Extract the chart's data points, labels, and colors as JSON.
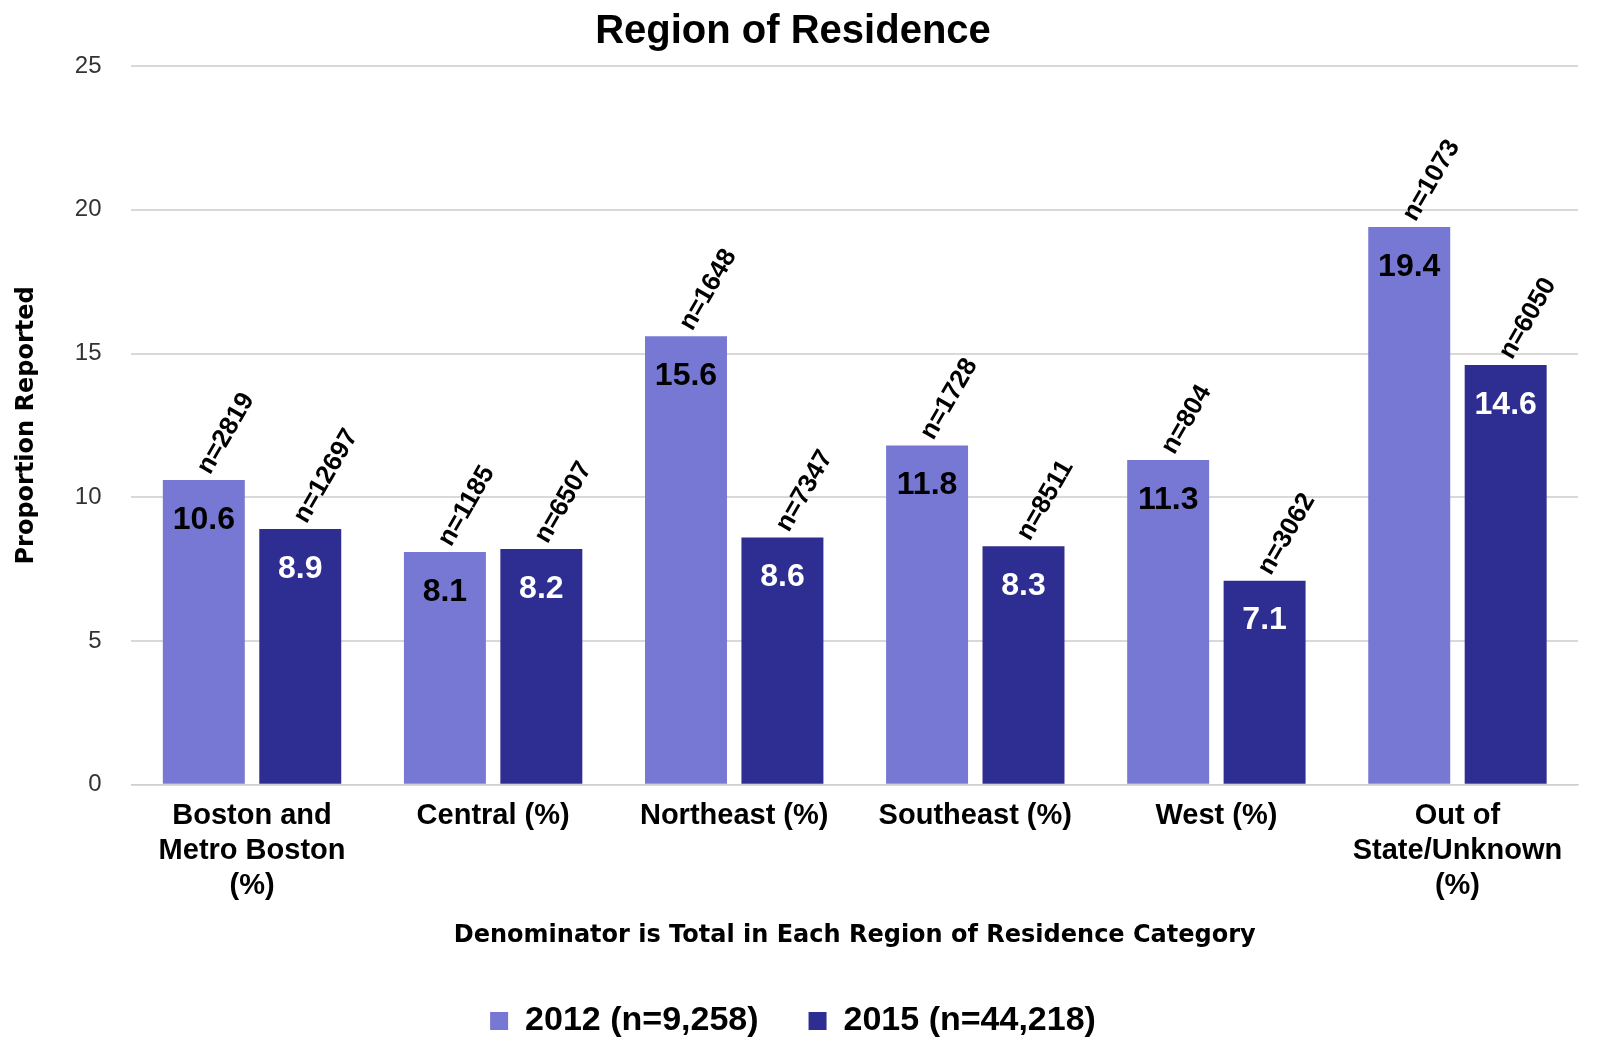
{
  "chart_data": {
    "type": "bar",
    "title": "Region of Residence",
    "xlabel": "Denominator is Total in Each Region of Residence Category",
    "ylabel": "Proportion Reported",
    "categories": [
      "Boston and Metro Boston (%)",
      "Central (%)",
      "Northeast (%)",
      "Southeast (%)",
      "West (%)",
      "Out of State/Unknown (%)"
    ],
    "series": [
      {
        "name": "2012 (n=9,258)",
        "color": "#7777d4",
        "values": [
          10.6,
          8.1,
          15.6,
          11.8,
          11.3,
          19.4
        ]
      },
      {
        "name": "2015 (n=44,218)",
        "color": "#2e2e92",
        "values": [
          8.9,
          8.2,
          8.6,
          8.3,
          7.1,
          14.6
        ]
      }
    ],
    "annotations": [
      "n=2819",
      "n=12697",
      "n=1185",
      "n=6507",
      "n=1648",
      "n=7347",
      "n=1728",
      "n=8511",
      "n=804",
      "n=3062",
      "n=1073",
      "n=6050"
    ],
    "ylim": [
      0,
      25
    ],
    "yticks": [
      0,
      5,
      10,
      15,
      20,
      25
    ],
    "grid": "y",
    "legend": "bottom",
    "data_labels": true
  }
}
